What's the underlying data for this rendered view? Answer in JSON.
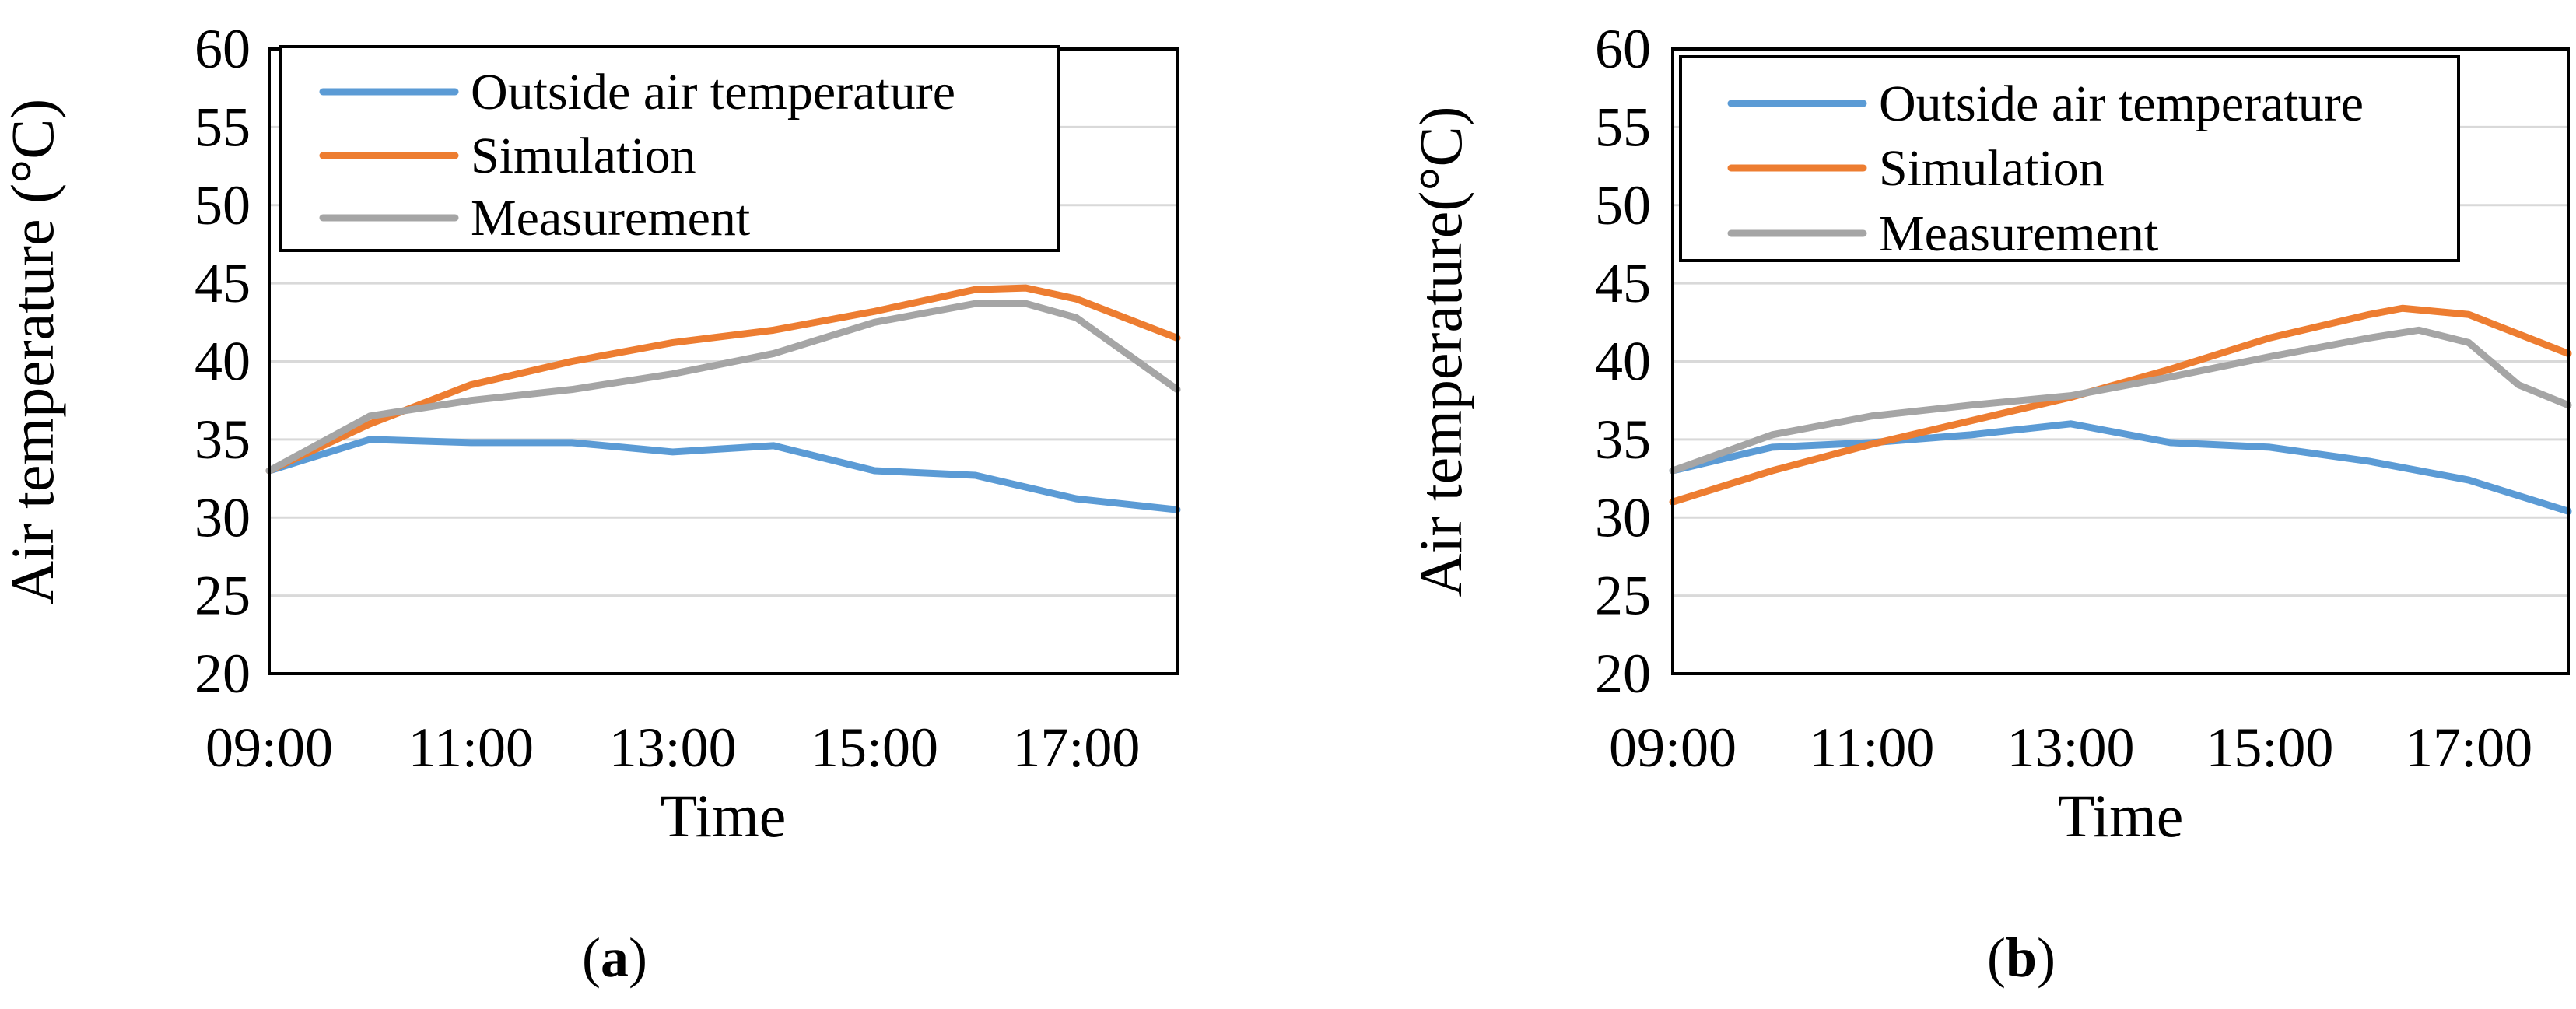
{
  "chart_data": [
    {
      "type": "line",
      "panel_label": "(a)",
      "panel_label_letter": "a",
      "xlabel": "Time",
      "ylabel": "Air temperature (°C)",
      "ylim": [
        20,
        60
      ],
      "yticks": [
        20,
        25,
        30,
        35,
        40,
        45,
        50,
        55,
        60
      ],
      "x_range_hours": [
        9,
        18
      ],
      "xticks": [
        "09:00",
        "11:00",
        "13:00",
        "15:00",
        "17:00"
      ],
      "grid": "horizontal",
      "legend_position": "top-left",
      "series": [
        {
          "name": "Outside air temperature",
          "color": "#5B9BD5",
          "x": [
            "09:00",
            "10:00",
            "11:00",
            "12:00",
            "13:00",
            "13:30",
            "14:00",
            "15:00",
            "16:00",
            "17:00",
            "18:00"
          ],
          "y": [
            33.0,
            35.0,
            34.8,
            34.8,
            34.2,
            34.4,
            34.6,
            33.0,
            32.7,
            31.2,
            30.5
          ]
        },
        {
          "name": "Simulation",
          "color": "#ED7D31",
          "x": [
            "09:00",
            "10:00",
            "11:00",
            "12:00",
            "13:00",
            "14:00",
            "15:00",
            "16:00",
            "16:30",
            "17:00",
            "18:00"
          ],
          "y": [
            33.0,
            36.0,
            38.5,
            40.0,
            41.2,
            42.0,
            43.2,
            44.6,
            44.7,
            44.0,
            41.5
          ]
        },
        {
          "name": "Measurement",
          "color": "#A5A5A5",
          "x": [
            "09:00",
            "10:00",
            "11:00",
            "12:00",
            "13:00",
            "14:00",
            "15:00",
            "16:00",
            "16:30",
            "17:00",
            "17:30",
            "18:00"
          ],
          "y": [
            33.0,
            36.5,
            37.5,
            38.2,
            39.2,
            40.5,
            42.5,
            43.7,
            43.7,
            42.8,
            40.5,
            38.2
          ]
        }
      ]
    },
    {
      "type": "line",
      "panel_label": "(b)",
      "panel_label_letter": "b",
      "xlabel": "Time",
      "ylabel": "Air temperature(°C)",
      "ylim": [
        20,
        60
      ],
      "yticks": [
        20,
        25,
        30,
        35,
        40,
        45,
        50,
        55,
        60
      ],
      "x_range_hours": [
        9,
        18
      ],
      "xticks": [
        "09:00",
        "11:00",
        "13:00",
        "15:00",
        "17:00"
      ],
      "grid": "horizontal",
      "legend_position": "top-left",
      "series": [
        {
          "name": "Outside air temperature",
          "color": "#5B9BD5",
          "x": [
            "09:00",
            "10:00",
            "11:00",
            "12:00",
            "13:00",
            "14:00",
            "15:00",
            "16:00",
            "17:00",
            "18:00"
          ],
          "y": [
            33.0,
            34.5,
            34.8,
            35.3,
            36.0,
            34.8,
            34.5,
            33.6,
            32.4,
            30.4
          ]
        },
        {
          "name": "Simulation",
          "color": "#ED7D31",
          "x": [
            "09:00",
            "10:00",
            "11:00",
            "12:00",
            "13:00",
            "14:00",
            "15:00",
            "16:00",
            "16:20",
            "17:00",
            "18:00"
          ],
          "y": [
            31.0,
            33.0,
            34.7,
            36.2,
            37.7,
            39.5,
            41.5,
            43.0,
            43.4,
            43.0,
            40.5
          ]
        },
        {
          "name": "Measurement",
          "color": "#A5A5A5",
          "x": [
            "09:00",
            "10:00",
            "11:00",
            "12:00",
            "13:00",
            "14:00",
            "15:00",
            "16:00",
            "16:30",
            "17:00",
            "17:30",
            "18:00"
          ],
          "y": [
            33.0,
            35.3,
            36.5,
            37.2,
            37.8,
            39.0,
            40.3,
            41.5,
            42.0,
            41.2,
            38.5,
            37.2
          ]
        }
      ]
    }
  ]
}
